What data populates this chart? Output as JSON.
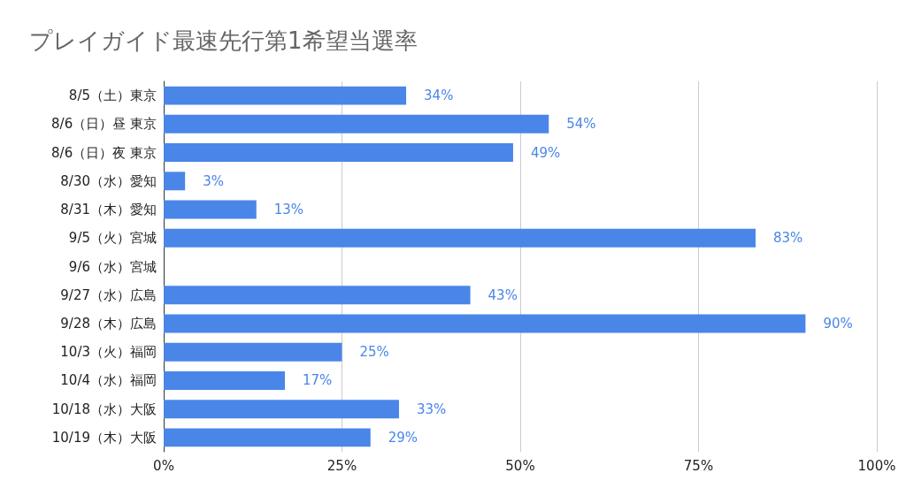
{
  "chart_data": {
    "type": "bar",
    "orientation": "horizontal",
    "title": "プレイガイド最速先行第1希望当選率",
    "categories": [
      "8/5（土）東京",
      "8/6（日）昼 東京",
      "8/6（日）夜 東京",
      "8/30（水）愛知",
      "8/31（木）愛知",
      "9/5（火）宮城",
      "9/6（水）宮城",
      "9/27（水）広島",
      "9/28（木）広島",
      "10/3（火）福岡",
      "10/4（水）福岡",
      "10/18（水）大阪",
      "10/19（木）大阪"
    ],
    "values": [
      34,
      54,
      49,
      3,
      13,
      83,
      null,
      43,
      90,
      25,
      17,
      33,
      29
    ],
    "value_labels": [
      "34%",
      "54%",
      "49%",
      "3%",
      "13%",
      "83%",
      null,
      "43%",
      "90%",
      "25%",
      "17%",
      "33%",
      "29%"
    ],
    "color": "#4a86e8",
    "xlim": [
      0,
      100
    ],
    "xticks": [
      {
        "value": 0,
        "label": "0%"
      },
      {
        "value": 25,
        "label": "25%"
      },
      {
        "value": 50,
        "label": "50%"
      },
      {
        "value": 75,
        "label": "75%"
      },
      {
        "value": 100,
        "label": "100%"
      }
    ],
    "grid": "x"
  }
}
